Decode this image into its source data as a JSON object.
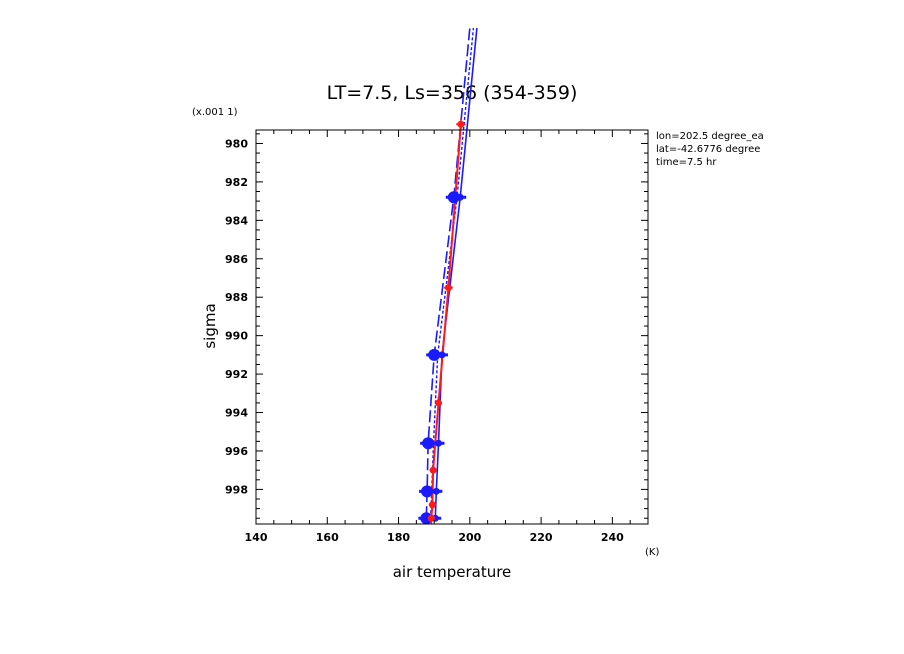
{
  "chart_data": {
    "type": "line",
    "title": "LT=7.5, Ls=356 (354-359)",
    "xlabel": "air temperature",
    "ylabel": "sigma",
    "x_unit": "(K)",
    "y_scale_note": "(x.001 1)",
    "xlim": [
      140,
      250
    ],
    "ylim": [
      979.3,
      999.8
    ],
    "y_inverted": true,
    "x_ticks": [
      140,
      160,
      180,
      200,
      220,
      240
    ],
    "y_ticks": [
      980,
      982,
      984,
      986,
      988,
      990,
      992,
      994,
      996,
      998
    ],
    "annotations": [
      "lon=202.5 degree_ea",
      "lat=-42.6776 degree",
      "time=7.5 hr"
    ],
    "colors": {
      "blue": "#1a1aff",
      "red": "#ff1a1a"
    },
    "series": [
      {
        "style": "blue-solid",
        "color": "#1a1aff",
        "x": [
          190.3,
          190.6,
          191.2,
          192.2,
          197.3,
          202.0
        ],
        "y": [
          999.5,
          998.1,
          995.6,
          991.0,
          982.8,
          974.0
        ]
      },
      {
        "style": "blue-dashed",
        "color": "#1a1aff",
        "x": [
          187.8,
          188.0,
          188.3,
          190.0,
          195.5,
          200.0
        ],
        "y": [
          999.5,
          998.1,
          995.6,
          991.0,
          982.8,
          974.0
        ]
      },
      {
        "style": "blue-dotted",
        "color": "#1a1aff",
        "x": [
          189.0,
          189.3,
          189.8,
          191.0,
          196.4,
          201.0
        ],
        "y": [
          999.5,
          998.1,
          995.6,
          991.0,
          982.8,
          974.0
        ]
      },
      {
        "style": "red-mean",
        "color": "#ff1a1a",
        "x": [
          189.2,
          189.5,
          189.7,
          191.2,
          194.0,
          197.5
        ],
        "y": [
          999.5,
          998.8,
          997.0,
          993.5,
          987.5,
          979.0
        ],
        "error_half_width": [
          1.0,
          1.0,
          1.0,
          1.0,
          1.2,
          1.3
        ]
      }
    ],
    "blue_markers": [
      {
        "x": 187.8,
        "y": 999.5,
        "size": "large"
      },
      {
        "x": 190.3,
        "y": 999.5,
        "size": "small"
      },
      {
        "x": 188.0,
        "y": 998.1,
        "size": "large"
      },
      {
        "x": 190.6,
        "y": 998.1,
        "size": "small"
      },
      {
        "x": 188.3,
        "y": 995.6,
        "size": "large"
      },
      {
        "x": 191.2,
        "y": 995.6,
        "size": "small"
      },
      {
        "x": 190.0,
        "y": 991.0,
        "size": "large"
      },
      {
        "x": 192.2,
        "y": 991.0,
        "size": "small"
      },
      {
        "x": 195.5,
        "y": 982.8,
        "size": "large"
      },
      {
        "x": 197.3,
        "y": 982.8,
        "size": "small"
      }
    ]
  }
}
